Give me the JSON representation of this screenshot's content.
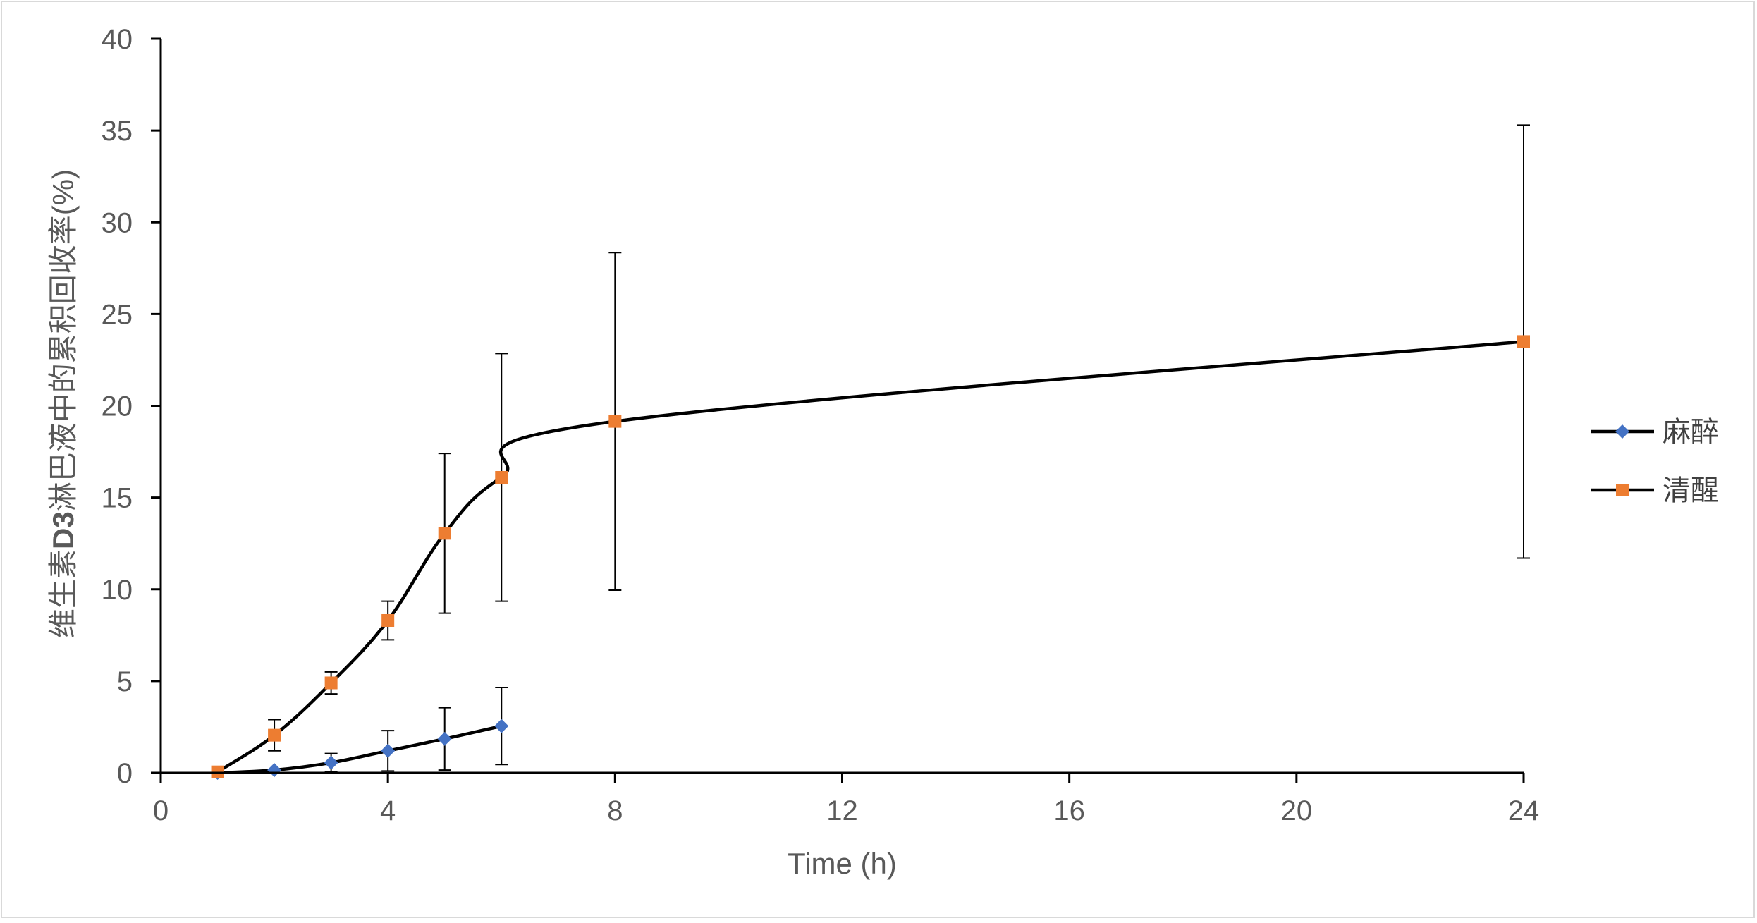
{
  "chart_data": {
    "type": "line",
    "title": "",
    "xlabel": "Time (h)",
    "ylabel_prefix": "维生素",
    "ylabel_bold": "D3",
    "ylabel_suffix": "淋巴液中的累积回收率(%)",
    "xlim": [
      0,
      24
    ],
    "ylim": [
      0,
      40
    ],
    "xticks": [
      0,
      4,
      8,
      12,
      16,
      20,
      24
    ],
    "yticks": [
      0,
      5,
      10,
      15,
      20,
      25,
      30,
      35,
      40
    ],
    "grid": false,
    "legend_position": "right",
    "series": [
      {
        "name": "麻醉",
        "color": "#4472c4",
        "marker": "diamond",
        "points": [
          {
            "x": 1,
            "y": 0,
            "err": 0
          },
          {
            "x": 2,
            "y": 0.15,
            "err": 0
          },
          {
            "x": 3,
            "y": 0.55,
            "err": 0.5
          },
          {
            "x": 4,
            "y": 1.2,
            "err": 1.1
          },
          {
            "x": 5,
            "y": 1.85,
            "err": 1.7
          },
          {
            "x": 6,
            "y": 2.55,
            "err": 2.1
          }
        ]
      },
      {
        "name": "清醒",
        "color": "#ed7d31",
        "marker": "square",
        "points": [
          {
            "x": 1,
            "y": 0.05,
            "err": 0
          },
          {
            "x": 2,
            "y": 2.05,
            "err": 0.85
          },
          {
            "x": 3,
            "y": 4.9,
            "err": 0.6
          },
          {
            "x": 4,
            "y": 8.3,
            "err": 1.05
          },
          {
            "x": 5,
            "y": 13.05,
            "err": 4.35
          },
          {
            "x": 6,
            "y": 16.1,
            "err": 6.75
          },
          {
            "x": 8,
            "y": 19.15,
            "err": 9.2
          },
          {
            "x": 24,
            "y": 23.5,
            "err": 11.8
          }
        ]
      }
    ]
  }
}
